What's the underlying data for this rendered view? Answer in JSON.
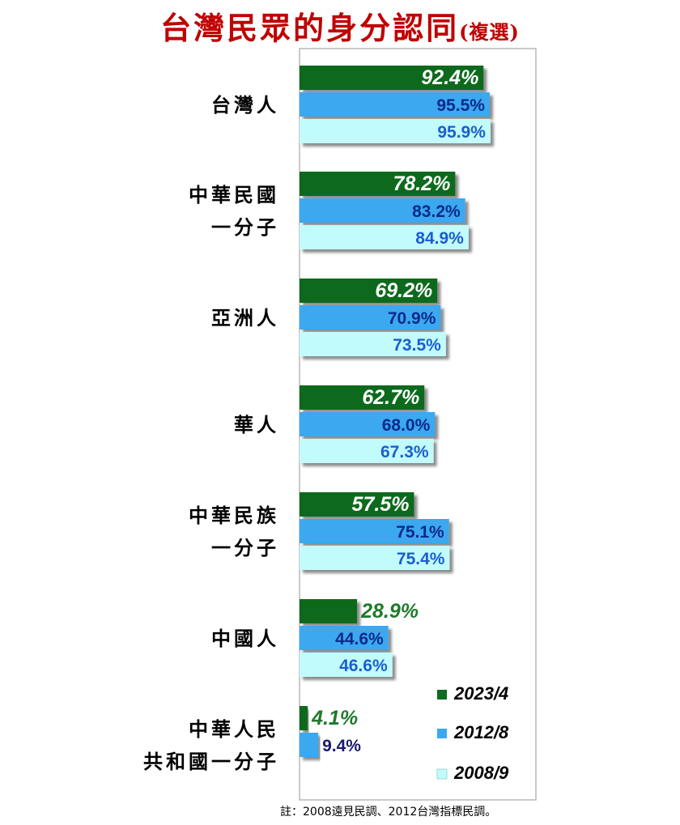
{
  "chart_data": {
    "type": "bar",
    "orientation": "horizontal",
    "title": "台灣民眾的身分認同",
    "subtitle": "(複選)",
    "categories": [
      [
        "台灣人"
      ],
      [
        "中華民國",
        "一分子"
      ],
      [
        "亞洲人"
      ],
      [
        "華人"
      ],
      [
        "中華民族",
        "一分子"
      ],
      [
        "中國人"
      ],
      [
        "中華人民",
        "共和國一分子"
      ]
    ],
    "series": [
      {
        "name": "2023/4",
        "color": "#0f6b1f",
        "values": [
          92.4,
          78.2,
          69.2,
          62.7,
          57.5,
          28.9,
          4.1
        ],
        "labels": [
          "92.4%",
          "78.2%",
          "69.2%",
          "62.7%",
          "57.5%",
          "28.9%",
          "4.1%"
        ]
      },
      {
        "name": "2012/8",
        "color": "#3ba8f0",
        "values": [
          95.5,
          83.2,
          70.9,
          68.0,
          75.1,
          44.6,
          9.4
        ],
        "labels": [
          "95.5%",
          "83.2%",
          "70.9%",
          "68.0%",
          "75.1%",
          "44.6%",
          "9.4%"
        ]
      },
      {
        "name": "2008/9",
        "color": "#c2fbfb",
        "values": [
          95.9,
          84.9,
          73.5,
          67.3,
          75.4,
          46.6,
          null
        ],
        "labels": [
          "95.9%",
          "84.9%",
          "73.5%",
          "67.3%",
          "75.4%",
          "46.6%",
          null
        ]
      }
    ],
    "xlim": [
      0,
      100
    ],
    "grid": false,
    "legend": "bottom-right"
  },
  "note": "註：2008遠見民調、2012台灣指標民調。"
}
